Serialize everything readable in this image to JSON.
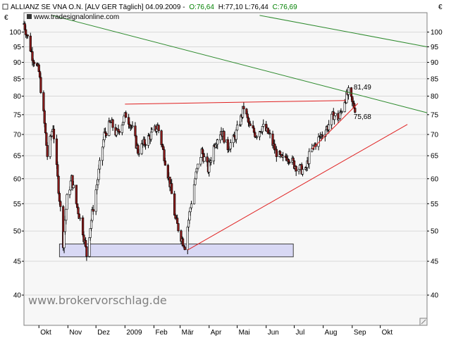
{
  "header": {
    "instrument": "ALLIANZ SE VNA O.N. [ALV GER  Täglich] 04.09.2009 -",
    "open": "O:76,64",
    "hlc": "H:77,10 L:76,44",
    "close": "C:76,69",
    "source_url": "www.tradesignalonline.com",
    "currency_left": "€",
    "currency_right": "€"
  },
  "watermark": "www.brokervorschlag.de",
  "colors": {
    "background": "#ffffff",
    "plot_area": "#f7f7f7",
    "grid": "#d8d8d8",
    "candle_up": "#ffffff",
    "candle_down": "#8b1a1a",
    "wick": "#000000",
    "green_trend": "#2e8b2e",
    "red_trend": "#e02020",
    "support_box_fill": "#d8d8f4",
    "support_box_border": "#404040",
    "open_value": "#008000",
    "close_value": "#008000"
  },
  "chart_data": {
    "type": "candlestick",
    "scale": "log",
    "ylim": [
      36,
      107
    ],
    "y_ticks": [
      40,
      45,
      50,
      55,
      60,
      65,
      70,
      75,
      80,
      85,
      90,
      95,
      100
    ],
    "y_tick_labels": [
      "40",
      "45",
      "50",
      "55",
      "60",
      "65",
      "70",
      "75",
      "80",
      "85",
      "90",
      "95",
      "100"
    ],
    "x_start": "2008-09-15",
    "x_end": "2009-11-20",
    "x_ticks": [
      {
        "label": "Okt",
        "date": "2008-10-01"
      },
      {
        "label": "Nov",
        "date": "2008-11-01"
      },
      {
        "label": "Dez",
        "date": "2008-12-01"
      },
      {
        "label": "2009",
        "date": "2009-01-01"
      },
      {
        "label": "Feb",
        "date": "2009-02-01"
      },
      {
        "label": "Mär",
        "date": "2009-03-01"
      },
      {
        "label": "Apr",
        "date": "2009-04-01"
      },
      {
        "label": "Mai",
        "date": "2009-05-01"
      },
      {
        "label": "Jun",
        "date": "2009-06-01"
      },
      {
        "label": "Jul",
        "date": "2009-07-01"
      },
      {
        "label": "Aug",
        "date": "2009-08-01"
      },
      {
        "label": "Sep",
        "date": "2009-09-01"
      },
      {
        "label": "Okt",
        "date": "2009-10-01"
      }
    ],
    "price_path": [
      [
        "2008-09-15",
        103
      ],
      [
        "2008-09-24",
        92
      ],
      [
        "2008-10-01",
        87
      ],
      [
        "2008-10-06",
        75
      ],
      [
        "2008-10-10",
        65
      ],
      [
        "2008-10-16",
        72
      ],
      [
        "2008-10-20",
        62
      ],
      [
        "2008-10-27",
        48
      ],
      [
        "2008-10-31",
        56
      ],
      [
        "2008-11-05",
        60
      ],
      [
        "2008-11-10",
        55
      ],
      [
        "2008-11-17",
        50
      ],
      [
        "2008-11-21",
        46
      ],
      [
        "2008-11-26",
        52
      ],
      [
        "2008-12-03",
        60
      ],
      [
        "2008-12-10",
        70
      ],
      [
        "2008-12-17",
        73
      ],
      [
        "2008-12-23",
        70
      ],
      [
        "2009-01-02",
        75
      ],
      [
        "2009-01-08",
        72
      ],
      [
        "2009-01-15",
        66
      ],
      [
        "2009-01-22",
        68
      ],
      [
        "2009-01-29",
        70
      ],
      [
        "2009-02-05",
        72
      ],
      [
        "2009-02-12",
        65
      ],
      [
        "2009-02-19",
        58
      ],
      [
        "2009-02-24",
        52
      ],
      [
        "2009-03-02",
        49
      ],
      [
        "2009-03-06",
        47.5
      ],
      [
        "2009-03-10",
        52
      ],
      [
        "2009-03-17",
        60
      ],
      [
        "2009-03-24",
        66
      ],
      [
        "2009-03-31",
        62
      ],
      [
        "2009-04-07",
        68
      ],
      [
        "2009-04-14",
        71
      ],
      [
        "2009-04-21",
        67
      ],
      [
        "2009-04-28",
        69
      ],
      [
        "2009-05-05",
        74
      ],
      [
        "2009-05-08",
        77
      ],
      [
        "2009-05-14",
        72
      ],
      [
        "2009-05-21",
        70
      ],
      [
        "2009-05-28",
        72
      ],
      [
        "2009-06-04",
        70
      ],
      [
        "2009-06-11",
        66
      ],
      [
        "2009-06-18",
        64
      ],
      [
        "2009-06-24",
        65
      ],
      [
        "2009-07-01",
        63
      ],
      [
        "2009-07-08",
        62
      ],
      [
        "2009-07-13",
        61.5
      ],
      [
        "2009-07-17",
        65
      ],
      [
        "2009-07-24",
        68
      ],
      [
        "2009-07-31",
        70
      ],
      [
        "2009-08-06",
        72
      ],
      [
        "2009-08-12",
        75
      ],
      [
        "2009-08-18",
        74
      ],
      [
        "2009-08-24",
        79
      ],
      [
        "2009-08-28",
        81
      ],
      [
        "2009-09-01",
        78
      ],
      [
        "2009-09-04",
        76.7
      ]
    ],
    "trendlines": [
      {
        "name": "green-upper",
        "color": "green",
        "from": [
          "2008-10-15",
          106
        ],
        "to": [
          "2009-11-20",
          75.5
        ]
      },
      {
        "name": "green-top",
        "color": "green",
        "from": [
          "2009-05-25",
          106
        ],
        "to": [
          "2009-11-20",
          95
        ]
      },
      {
        "name": "red-resistance",
        "color": "red",
        "from": [
          "2009-01-01",
          77.8
        ],
        "to": [
          "2009-08-25",
          78.8
        ]
      },
      {
        "name": "red-long-support",
        "color": "red",
        "from": [
          "2009-03-09",
          46.8
        ],
        "to": [
          "2009-10-30",
          72.5
        ]
      },
      {
        "name": "red-short-support",
        "color": "red",
        "from": [
          "2009-07-20",
          66.5
        ],
        "to": [
          "2009-09-07",
          78
        ]
      }
    ],
    "support_zone": {
      "from": "2008-10-23",
      "to": "2009-06-30",
      "low": 45.7,
      "high": 47.8
    },
    "annotations": [
      {
        "text": "81,49",
        "date": "2009-09-01",
        "value": 81.49,
        "color": "green"
      },
      {
        "text": "75,68",
        "date": "2009-09-01",
        "value": 75.68,
        "color": "red"
      }
    ]
  }
}
